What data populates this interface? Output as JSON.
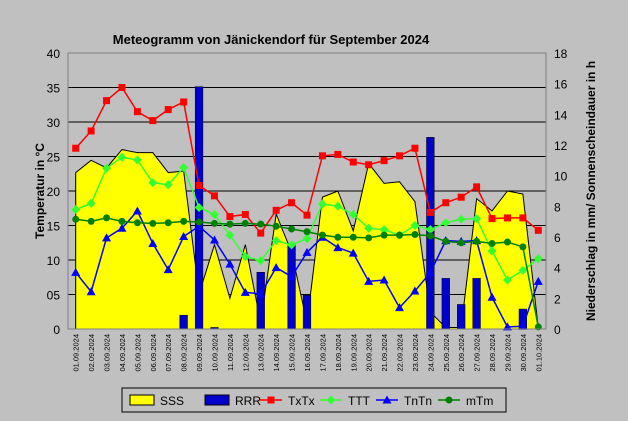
{
  "chart_data": {
    "type": "bar",
    "title": "Meteogramm von Jänickendorf für September 2024",
    "ylabel_left": "Temperatur in °C",
    "ylabel_right": "Niederschlag in mm/ Sonnenscheindauer in h",
    "ylim_left": [
      0,
      40
    ],
    "ylim_right": [
      0,
      18
    ],
    "yticks_left": [
      "0",
      "05",
      "10",
      "15",
      "20",
      "25",
      "30",
      "35",
      "40"
    ],
    "yticks_right": [
      "0",
      "2",
      "4",
      "6",
      "8",
      "10",
      "12",
      "14",
      "16",
      "18"
    ],
    "categories": [
      "01.09.2024",
      "02.09.2024",
      "03.09.2024",
      "04.09.2024",
      "05.09.2024",
      "06.09.2024",
      "07.09.2024",
      "08.09.2024",
      "09.09.2024",
      "10.09.2024",
      "11.09.2024",
      "12.09.2024",
      "13.09.2024",
      "14.09.2024",
      "15.09.2024",
      "16.09.2024",
      "17.09.2024",
      "18.09.2024",
      "19.09.2024",
      "20.09.2024",
      "21.09.2024",
      "22.09.2024",
      "23.09.2024",
      "24.09.2024",
      "25.09.2024",
      "26.09.2024",
      "27.09.2024",
      "28.09.2024",
      "29.09.2024",
      "30.09.2024",
      "01.10.2024"
    ],
    "grid": true,
    "legend_position": "bottom",
    "series": [
      {
        "name": "SSS",
        "type": "area",
        "axis": "right",
        "color": "#ffff00",
        "values": [
          10.2,
          11.0,
          10.5,
          11.7,
          11.5,
          11.5,
          10.2,
          10.3,
          2.3,
          5.5,
          2.0,
          5.5,
          0.4,
          7.5,
          5.0,
          0.4,
          8.6,
          9.0,
          6.4,
          10.8,
          9.5,
          9.6,
          8.3,
          1.1,
          0.1,
          0.1,
          8.5,
          7.7,
          9.0,
          8.8,
          0.1
        ]
      },
      {
        "name": "RRR",
        "type": "bar",
        "axis": "right",
        "color": "#0000cc",
        "values": [
          0,
          0,
          0,
          0,
          0,
          0,
          0,
          0.9,
          15.8,
          0.1,
          0,
          0,
          3.7,
          0,
          5.6,
          2.2,
          0,
          0,
          0,
          0,
          0,
          0,
          0,
          12.5,
          3.3,
          1.6,
          3.3,
          0,
          0,
          1.3,
          0
        ]
      },
      {
        "name": "TxTx",
        "type": "line",
        "axis": "left",
        "color": "#ff0000",
        "marker": "square",
        "values": [
          26.2,
          28.7,
          33.1,
          35.0,
          31.5,
          30.2,
          31.8,
          32.9,
          20.8,
          19.3,
          16.3,
          16.6,
          13.9,
          17.2,
          18.3,
          16.5,
          25.1,
          25.3,
          24.2,
          23.8,
          24.4,
          25.1,
          26.2,
          16.9,
          18.3,
          19.1,
          20.6,
          16.0,
          16.1,
          16.1,
          14.3
        ]
      },
      {
        "name": "TTT",
        "type": "line",
        "axis": "left",
        "color": "#33ff33",
        "marker": "diamond",
        "values": [
          17.3,
          18.2,
          23.3,
          24.9,
          24.5,
          21.2,
          20.9,
          23.4,
          17.6,
          16.6,
          13.6,
          10.5,
          9.9,
          12.8,
          12.2,
          13.1,
          18.1,
          17.8,
          16.6,
          14.6,
          14.4,
          13.6,
          15.0,
          14.4,
          15.4,
          15.9,
          16.0,
          11.3,
          7.1,
          8.5,
          10.2
        ]
      },
      {
        "name": "TnTn",
        "type": "line",
        "axis": "left",
        "color": "#0000ff",
        "marker": "triangle",
        "values": [
          8.2,
          5.4,
          13.2,
          14.6,
          17.1,
          12.4,
          8.6,
          13.4,
          14.9,
          12.9,
          9.4,
          5.3,
          5.1,
          8.9,
          7.6,
          11.1,
          13.3,
          11.8,
          11.0,
          6.9,
          7.1,
          3.1,
          5.5,
          8.2,
          12.8,
          12.7,
          12.8,
          4.6,
          0.3,
          0.4,
          6.9
        ]
      },
      {
        "name": "mTm",
        "type": "line",
        "axis": "left",
        "color": "#008000",
        "marker": "circle",
        "values": [
          15.9,
          15.6,
          16.1,
          15.6,
          15.4,
          15.3,
          15.4,
          15.6,
          15.5,
          15.3,
          15.2,
          15.3,
          15.2,
          14.9,
          14.5,
          14.1,
          13.6,
          13.3,
          13.3,
          13.2,
          13.6,
          13.6,
          13.7,
          13.5,
          12.7,
          12.5,
          12.7,
          12.4,
          12.6,
          11.9,
          0.3
        ]
      }
    ]
  }
}
